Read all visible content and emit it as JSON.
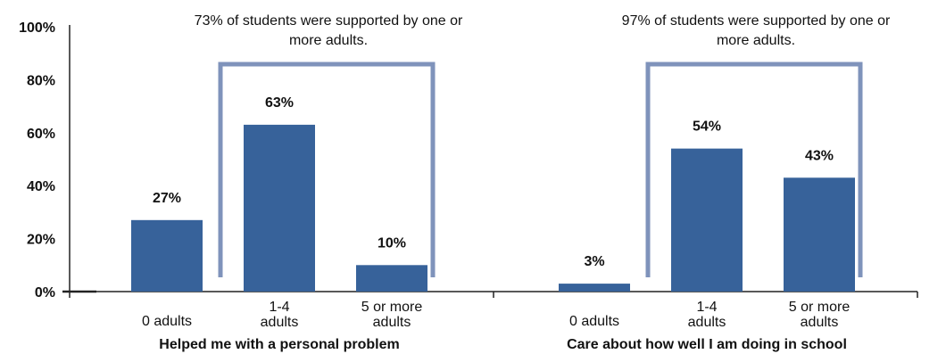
{
  "chart_data": {
    "type": "bar",
    "ylim": [
      0,
      100
    ],
    "yticks": [
      "0%",
      "20%",
      "40%",
      "60%",
      "80%",
      "100%"
    ],
    "bar_color": "#37629a",
    "bracket_color": "#7f93bb",
    "groups": [
      {
        "title": "Helped me with a personal problem",
        "categories": [
          "0 adults",
          "1-4 adults",
          "5 or more adults"
        ],
        "values": [
          27,
          63,
          10
        ],
        "labels": [
          "27%",
          "63%",
          "10%"
        ],
        "annotation": "73% of students were supported by one or more adults."
      },
      {
        "title": "Care about how well I am doing in school",
        "categories": [
          "0 adults",
          "1-4 adults",
          "5 or more adults"
        ],
        "values": [
          3,
          54,
          43
        ],
        "labels": [
          "3%",
          "54%",
          "43%"
        ],
        "annotation": "97% of students were supported by one or more adults."
      }
    ]
  }
}
